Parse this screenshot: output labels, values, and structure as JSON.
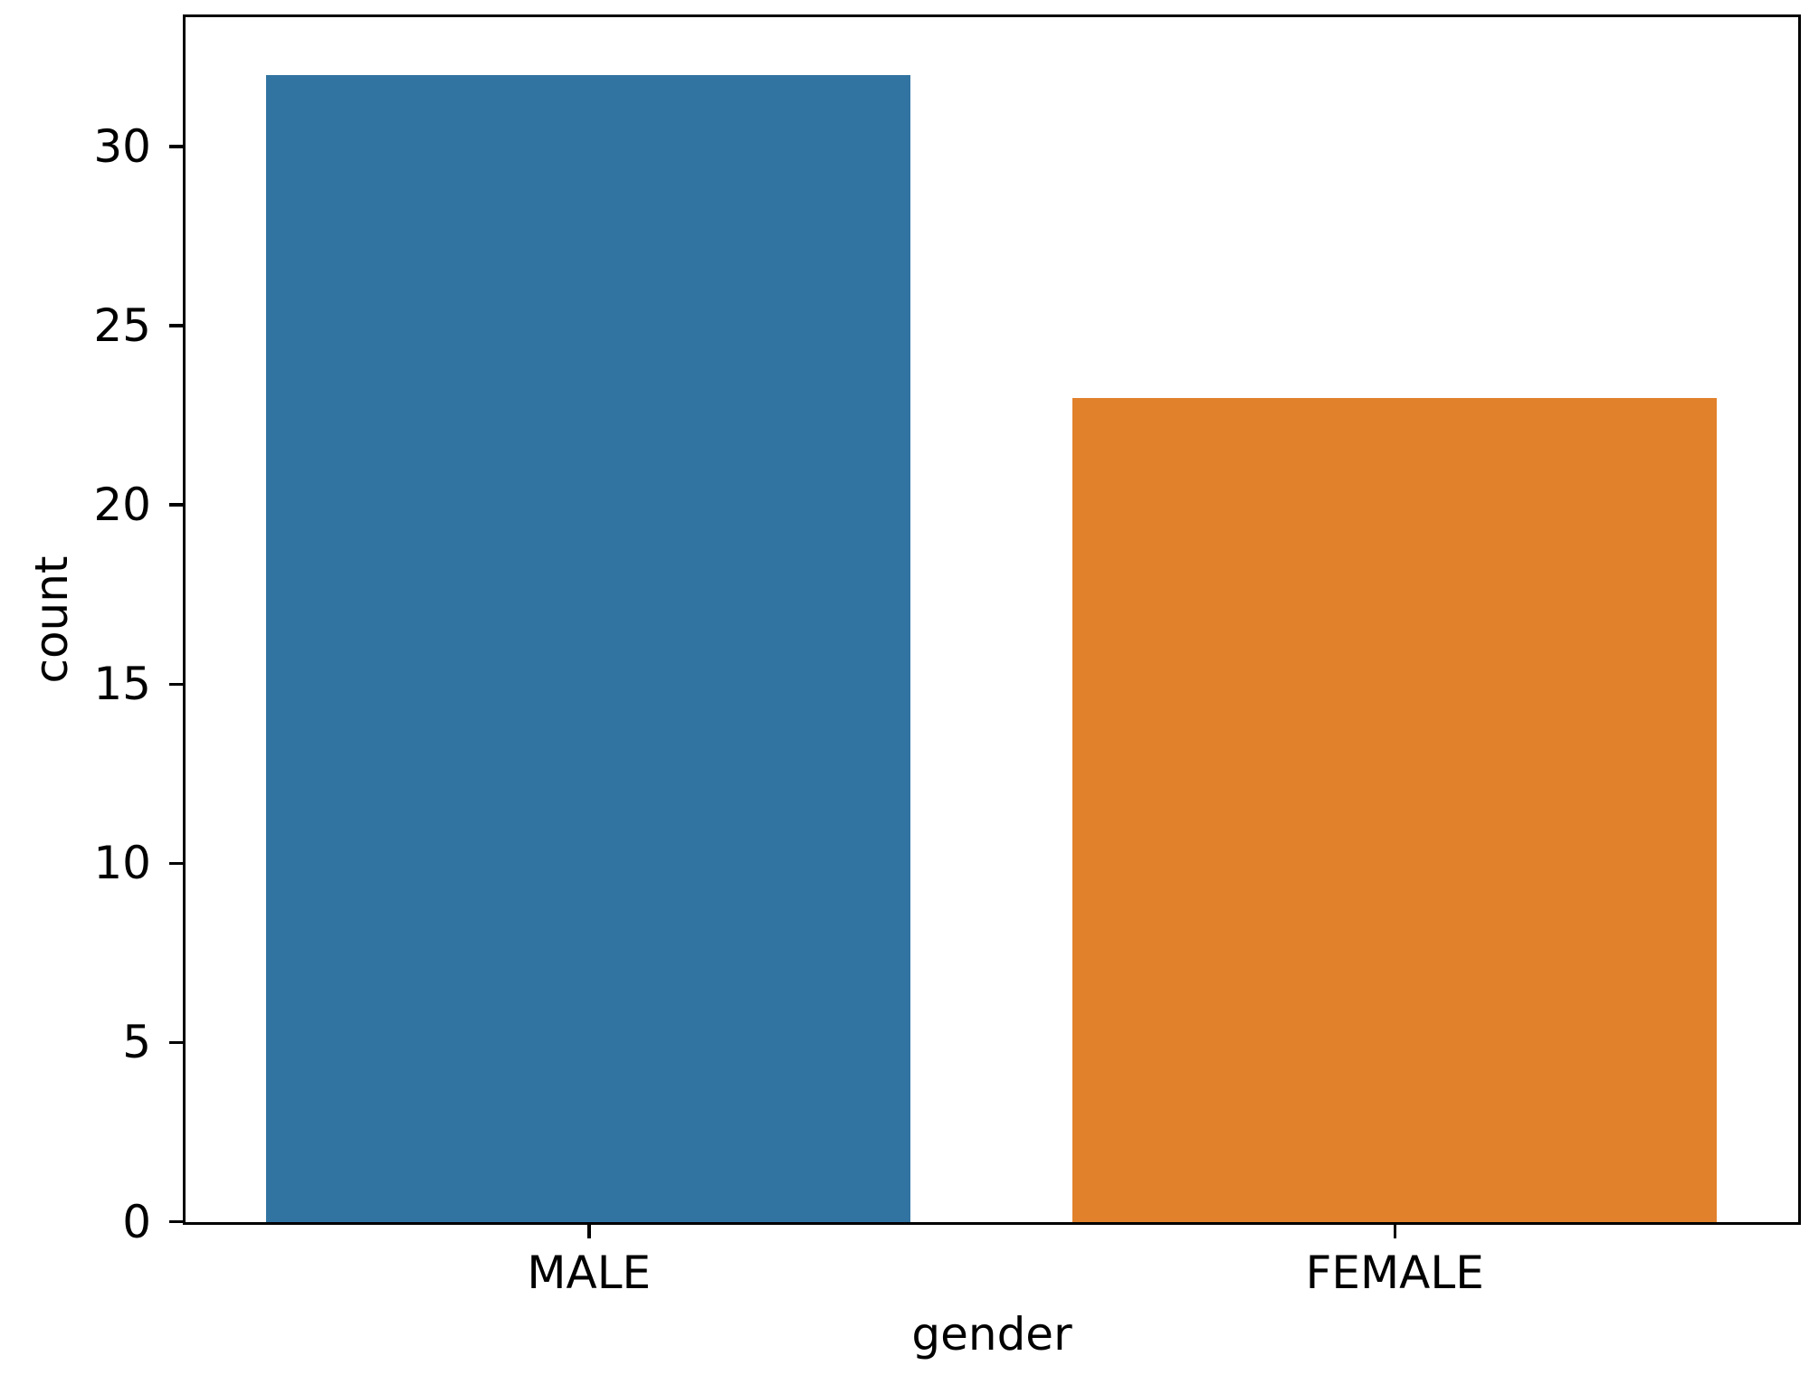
{
  "figure": {
    "background_color": "#ffffff",
    "spine_color": "#000000",
    "text_color": "#000000"
  },
  "chart_data": {
    "type": "bar",
    "categories": [
      "MALE",
      "FEMALE"
    ],
    "values": [
      32,
      23
    ],
    "bar_colors": [
      "#3274a1",
      "#e1812c"
    ],
    "title": "",
    "xlabel": "gender",
    "ylabel": "count",
    "yticks": [
      0,
      5,
      10,
      15,
      20,
      25,
      30
    ],
    "ylim": [
      0,
      33.6
    ],
    "bar_width_fraction": 0.8,
    "grid": false,
    "legend": "none"
  }
}
